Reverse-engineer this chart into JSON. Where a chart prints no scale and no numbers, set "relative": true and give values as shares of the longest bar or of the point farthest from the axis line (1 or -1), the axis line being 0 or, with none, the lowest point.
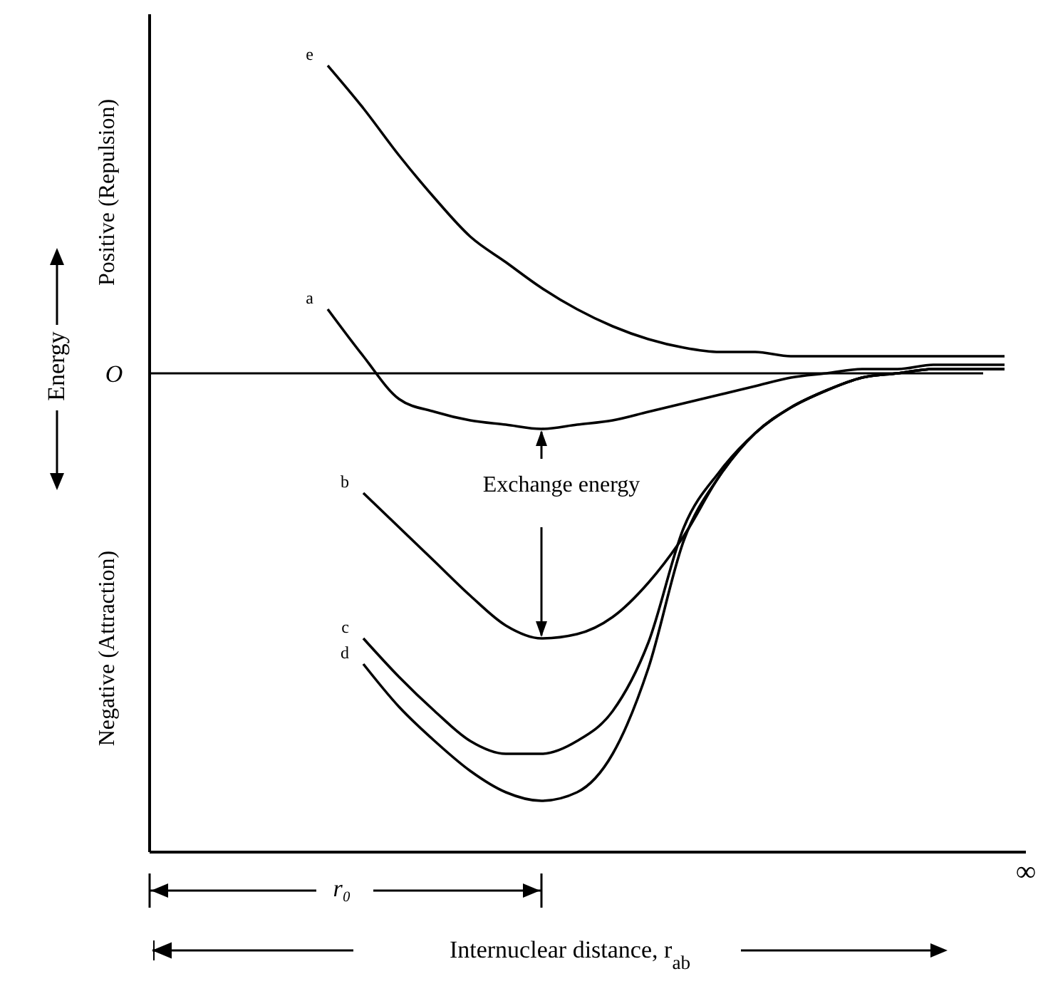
{
  "chart_data": {
    "type": "line",
    "relative": true,
    "marker": "none",
    "line_style": "solid",
    "legend": false,
    "ylabel": "Energy",
    "annotations": [
      "Positive (Repulsion)",
      "Negative (Attraction)",
      "O",
      "Exchange energy",
      "r₀",
      "∞",
      "Internuclear distance, r$_{ab}$"
    ],
    "categories": [
      null,
      null,
      null,
      null,
      null,
      null,
      null,
      null,
      null,
      null,
      null,
      null,
      null,
      null,
      null,
      null,
      null,
      null,
      null,
      null,
      null,
      null,
      null,
      null,
      null
    ],
    "series": [
      {
        "name": "e",
        "color": "#000000",
        "values": [
          null,
          null,
          null,
          null,
          null,
          0.72,
          0.62,
          0.51,
          0.41,
          0.32,
          0.26,
          0.2,
          0.15,
          0.11,
          0.08,
          0.06,
          0.05,
          0.05,
          0.04,
          0.04,
          0.04,
          0.04,
          0.04,
          0.04,
          0.04
        ]
      },
      {
        "name": "a",
        "color": "#000000",
        "values": [
          null,
          null,
          null,
          null,
          null,
          0.15,
          0.04,
          -0.06,
          -0.09,
          -0.11,
          -0.12,
          -0.13,
          -0.12,
          -0.11,
          -0.09,
          -0.07,
          -0.05,
          -0.03,
          -0.01,
          0.0,
          0.01,
          0.01,
          0.02,
          0.02,
          0.02
        ]
      },
      {
        "name": "b",
        "color": "#000000",
        "values": [
          null,
          null,
          null,
          null,
          null,
          null,
          -0.28,
          -0.36,
          -0.44,
          -0.52,
          -0.59,
          -0.62,
          -0.61,
          -0.57,
          -0.49,
          -0.38,
          -0.24,
          -0.14,
          -0.08,
          -0.04,
          -0.01,
          0.0,
          0.01,
          0.01,
          0.01
        ]
      },
      {
        "name": "c",
        "color": "#000000",
        "values": [
          null,
          null,
          null,
          null,
          null,
          null,
          -0.62,
          -0.71,
          -0.79,
          -0.86,
          -0.89,
          -0.89,
          -0.86,
          -0.79,
          -0.63,
          -0.36,
          -0.23,
          -0.14,
          -0.08,
          -0.04,
          -0.01,
          0.0,
          0.01,
          0.01,
          0.01
        ]
      },
      {
        "name": "d",
        "color": "#000000",
        "values": [
          null,
          null,
          null,
          null,
          null,
          null,
          -0.68,
          -0.78,
          -0.86,
          -0.93,
          -0.98,
          -1,
          -0.98,
          -0.89,
          -0.69,
          -0.39,
          -0.24,
          -0.14,
          -0.08,
          -0.04,
          -0.01,
          0.0,
          0.01,
          0.01,
          0.01
        ]
      }
    ]
  }
}
